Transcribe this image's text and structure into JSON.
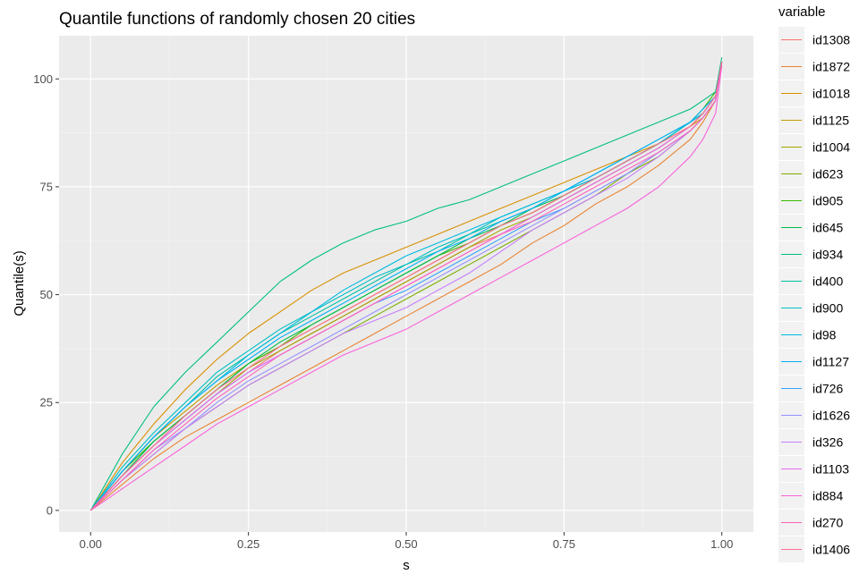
{
  "chart_data": {
    "type": "line",
    "title": "Quantile functions of randomly chosen 20 cities",
    "xlabel": "s",
    "ylabel": "Quantile(s)",
    "xlim": [
      -0.05,
      1.05
    ],
    "ylim": [
      -5,
      110
    ],
    "x_ticks": [
      0,
      0.25,
      0.5,
      0.75,
      1
    ],
    "x_tick_labels": [
      "0.00",
      "0.25",
      "0.50",
      "0.75",
      "1.00"
    ],
    "y_ticks": [
      0,
      25,
      50,
      75,
      100
    ],
    "y_tick_labels": [
      "0",
      "25",
      "50",
      "75",
      "100"
    ],
    "grid": true,
    "legend_title": "variable",
    "legend_position": "right",
    "x": [
      0,
      0.05,
      0.1,
      0.15,
      0.2,
      0.25,
      0.3,
      0.35,
      0.4,
      0.45,
      0.5,
      0.55,
      0.6,
      0.65,
      0.7,
      0.75,
      0.8,
      0.85,
      0.9,
      0.95,
      0.97,
      0.99,
      1
    ],
    "series": [
      {
        "name": "id1308",
        "color": "#F8766D",
        "values": [
          0,
          8,
          15,
          21,
          27,
          32,
          37,
          41,
          45,
          49,
          53,
          57,
          61,
          64,
          68,
          72,
          76,
          80,
          84,
          89,
          92,
          96,
          103
        ]
      },
      {
        "name": "id1872",
        "color": "#EA8331",
        "values": [
          0,
          6,
          12,
          17,
          21,
          25,
          29,
          33,
          37,
          41,
          45,
          49,
          53,
          57,
          62,
          66,
          71,
          75,
          80,
          86,
          90,
          95,
          104
        ]
      },
      {
        "name": "id1018",
        "color": "#D89000",
        "values": [
          0,
          11,
          20,
          28,
          35,
          41,
          46,
          51,
          55,
          58,
          61,
          64,
          67,
          70,
          73,
          76,
          79,
          82,
          85,
          89,
          91,
          95,
          104
        ]
      },
      {
        "name": "id1125",
        "color": "#C09B00",
        "values": [
          0,
          9,
          17,
          23,
          29,
          34,
          38,
          42,
          46,
          50,
          54,
          58,
          62,
          66,
          69,
          73,
          77,
          81,
          85,
          90,
          92,
          96,
          104
        ]
      },
      {
        "name": "id1004",
        "color": "#A3A500",
        "values": [
          0,
          8,
          15,
          21,
          27,
          33,
          37,
          41,
          45,
          49,
          53,
          57,
          61,
          65,
          68,
          72,
          76,
          80,
          84,
          89,
          92,
          96,
          103
        ]
      },
      {
        "name": "id623",
        "color": "#7CAE00",
        "values": [
          0,
          7,
          13,
          19,
          24,
          29,
          33,
          37,
          41,
          45,
          49,
          53,
          57,
          61,
          65,
          69,
          73,
          78,
          82,
          88,
          91,
          95,
          104
        ]
      },
      {
        "name": "id905",
        "color": "#39B600",
        "values": [
          0,
          9,
          16,
          22,
          28,
          34,
          38,
          43,
          47,
          51,
          55,
          59,
          62,
          66,
          69,
          73,
          77,
          81,
          85,
          90,
          93,
          97,
          104
        ]
      },
      {
        "name": "id645",
        "color": "#00BB4E",
        "values": [
          0,
          8,
          16,
          22,
          28,
          34,
          39,
          43,
          47,
          51,
          55,
          59,
          63,
          66,
          70,
          73,
          77,
          81,
          85,
          90,
          92,
          96,
          103
        ]
      },
      {
        "name": "id934",
        "color": "#00BF7D",
        "values": [
          0,
          13,
          24,
          32,
          39,
          46,
          53,
          58,
          62,
          65,
          67,
          70,
          72,
          75,
          78,
          81,
          84,
          87,
          90,
          93,
          95,
          97,
          105
        ]
      },
      {
        "name": "id400",
        "color": "#00C1A3",
        "values": [
          0,
          9,
          17,
          24,
          31,
          36,
          41,
          45,
          49,
          53,
          57,
          60,
          64,
          67,
          70,
          74,
          77,
          81,
          85,
          90,
          92,
          96,
          104
        ]
      },
      {
        "name": "id900",
        "color": "#00BFC4",
        "values": [
          0,
          10,
          18,
          25,
          32,
          37,
          42,
          46,
          50,
          54,
          57,
          61,
          64,
          68,
          71,
          74,
          78,
          82,
          86,
          90,
          92,
          96,
          104
        ]
      },
      {
        "name": "id98",
        "color": "#00BAE0",
        "values": [
          0,
          9,
          17,
          24,
          30,
          36,
          41,
          46,
          51,
          55,
          59,
          62,
          65,
          68,
          71,
          74,
          77,
          81,
          85,
          90,
          92,
          96,
          104
        ]
      },
      {
        "name": "id1127",
        "color": "#00B0F6",
        "values": [
          0,
          9,
          17,
          24,
          30,
          35,
          40,
          44,
          48,
          52,
          56,
          60,
          63,
          67,
          70,
          74,
          78,
          82,
          86,
          90,
          93,
          96,
          104
        ]
      },
      {
        "name": "id726",
        "color": "#35A2FF",
        "values": [
          0,
          8,
          15,
          21,
          27,
          32,
          36,
          40,
          44,
          48,
          51,
          55,
          59,
          63,
          67,
          70,
          74,
          78,
          83,
          88,
          91,
          95,
          104
        ]
      },
      {
        "name": "id1626",
        "color": "#9590FF",
        "values": [
          0,
          7,
          14,
          19,
          25,
          30,
          34,
          38,
          42,
          46,
          50,
          54,
          58,
          62,
          66,
          70,
          74,
          78,
          83,
          88,
          91,
          95,
          104
        ]
      },
      {
        "name": "id326",
        "color": "#C77CFF",
        "values": [
          0,
          7,
          13,
          19,
          24,
          29,
          33,
          37,
          41,
          44,
          47,
          51,
          55,
          60,
          65,
          69,
          73,
          77,
          82,
          88,
          91,
          95,
          104
        ]
      },
      {
        "name": "id1103",
        "color": "#E76BF3",
        "values": [
          0,
          8,
          15,
          21,
          27,
          32,
          36,
          40,
          44,
          48,
          52,
          56,
          60,
          64,
          68,
          72,
          76,
          80,
          84,
          89,
          92,
          96,
          104
        ]
      },
      {
        "name": "id884",
        "color": "#FA62DB",
        "values": [
          0,
          5,
          10,
          15,
          20,
          24,
          28,
          32,
          36,
          39,
          42,
          46,
          50,
          54,
          58,
          62,
          66,
          70,
          75,
          82,
          86,
          92,
          103
        ]
      },
      {
        "name": "id270",
        "color": "#FF62BC",
        "values": [
          0,
          7,
          14,
          20,
          26,
          31,
          36,
          40,
          44,
          48,
          52,
          56,
          60,
          64,
          67,
          71,
          75,
          79,
          83,
          88,
          91,
          95,
          104
        ]
      },
      {
        "name": "id1406",
        "color": "#FF6C91",
        "values": [
          0,
          8,
          15,
          22,
          28,
          33,
          38,
          42,
          46,
          50,
          54,
          58,
          62,
          66,
          69,
          73,
          77,
          81,
          85,
          89,
          92,
          96,
          104
        ]
      }
    ]
  }
}
